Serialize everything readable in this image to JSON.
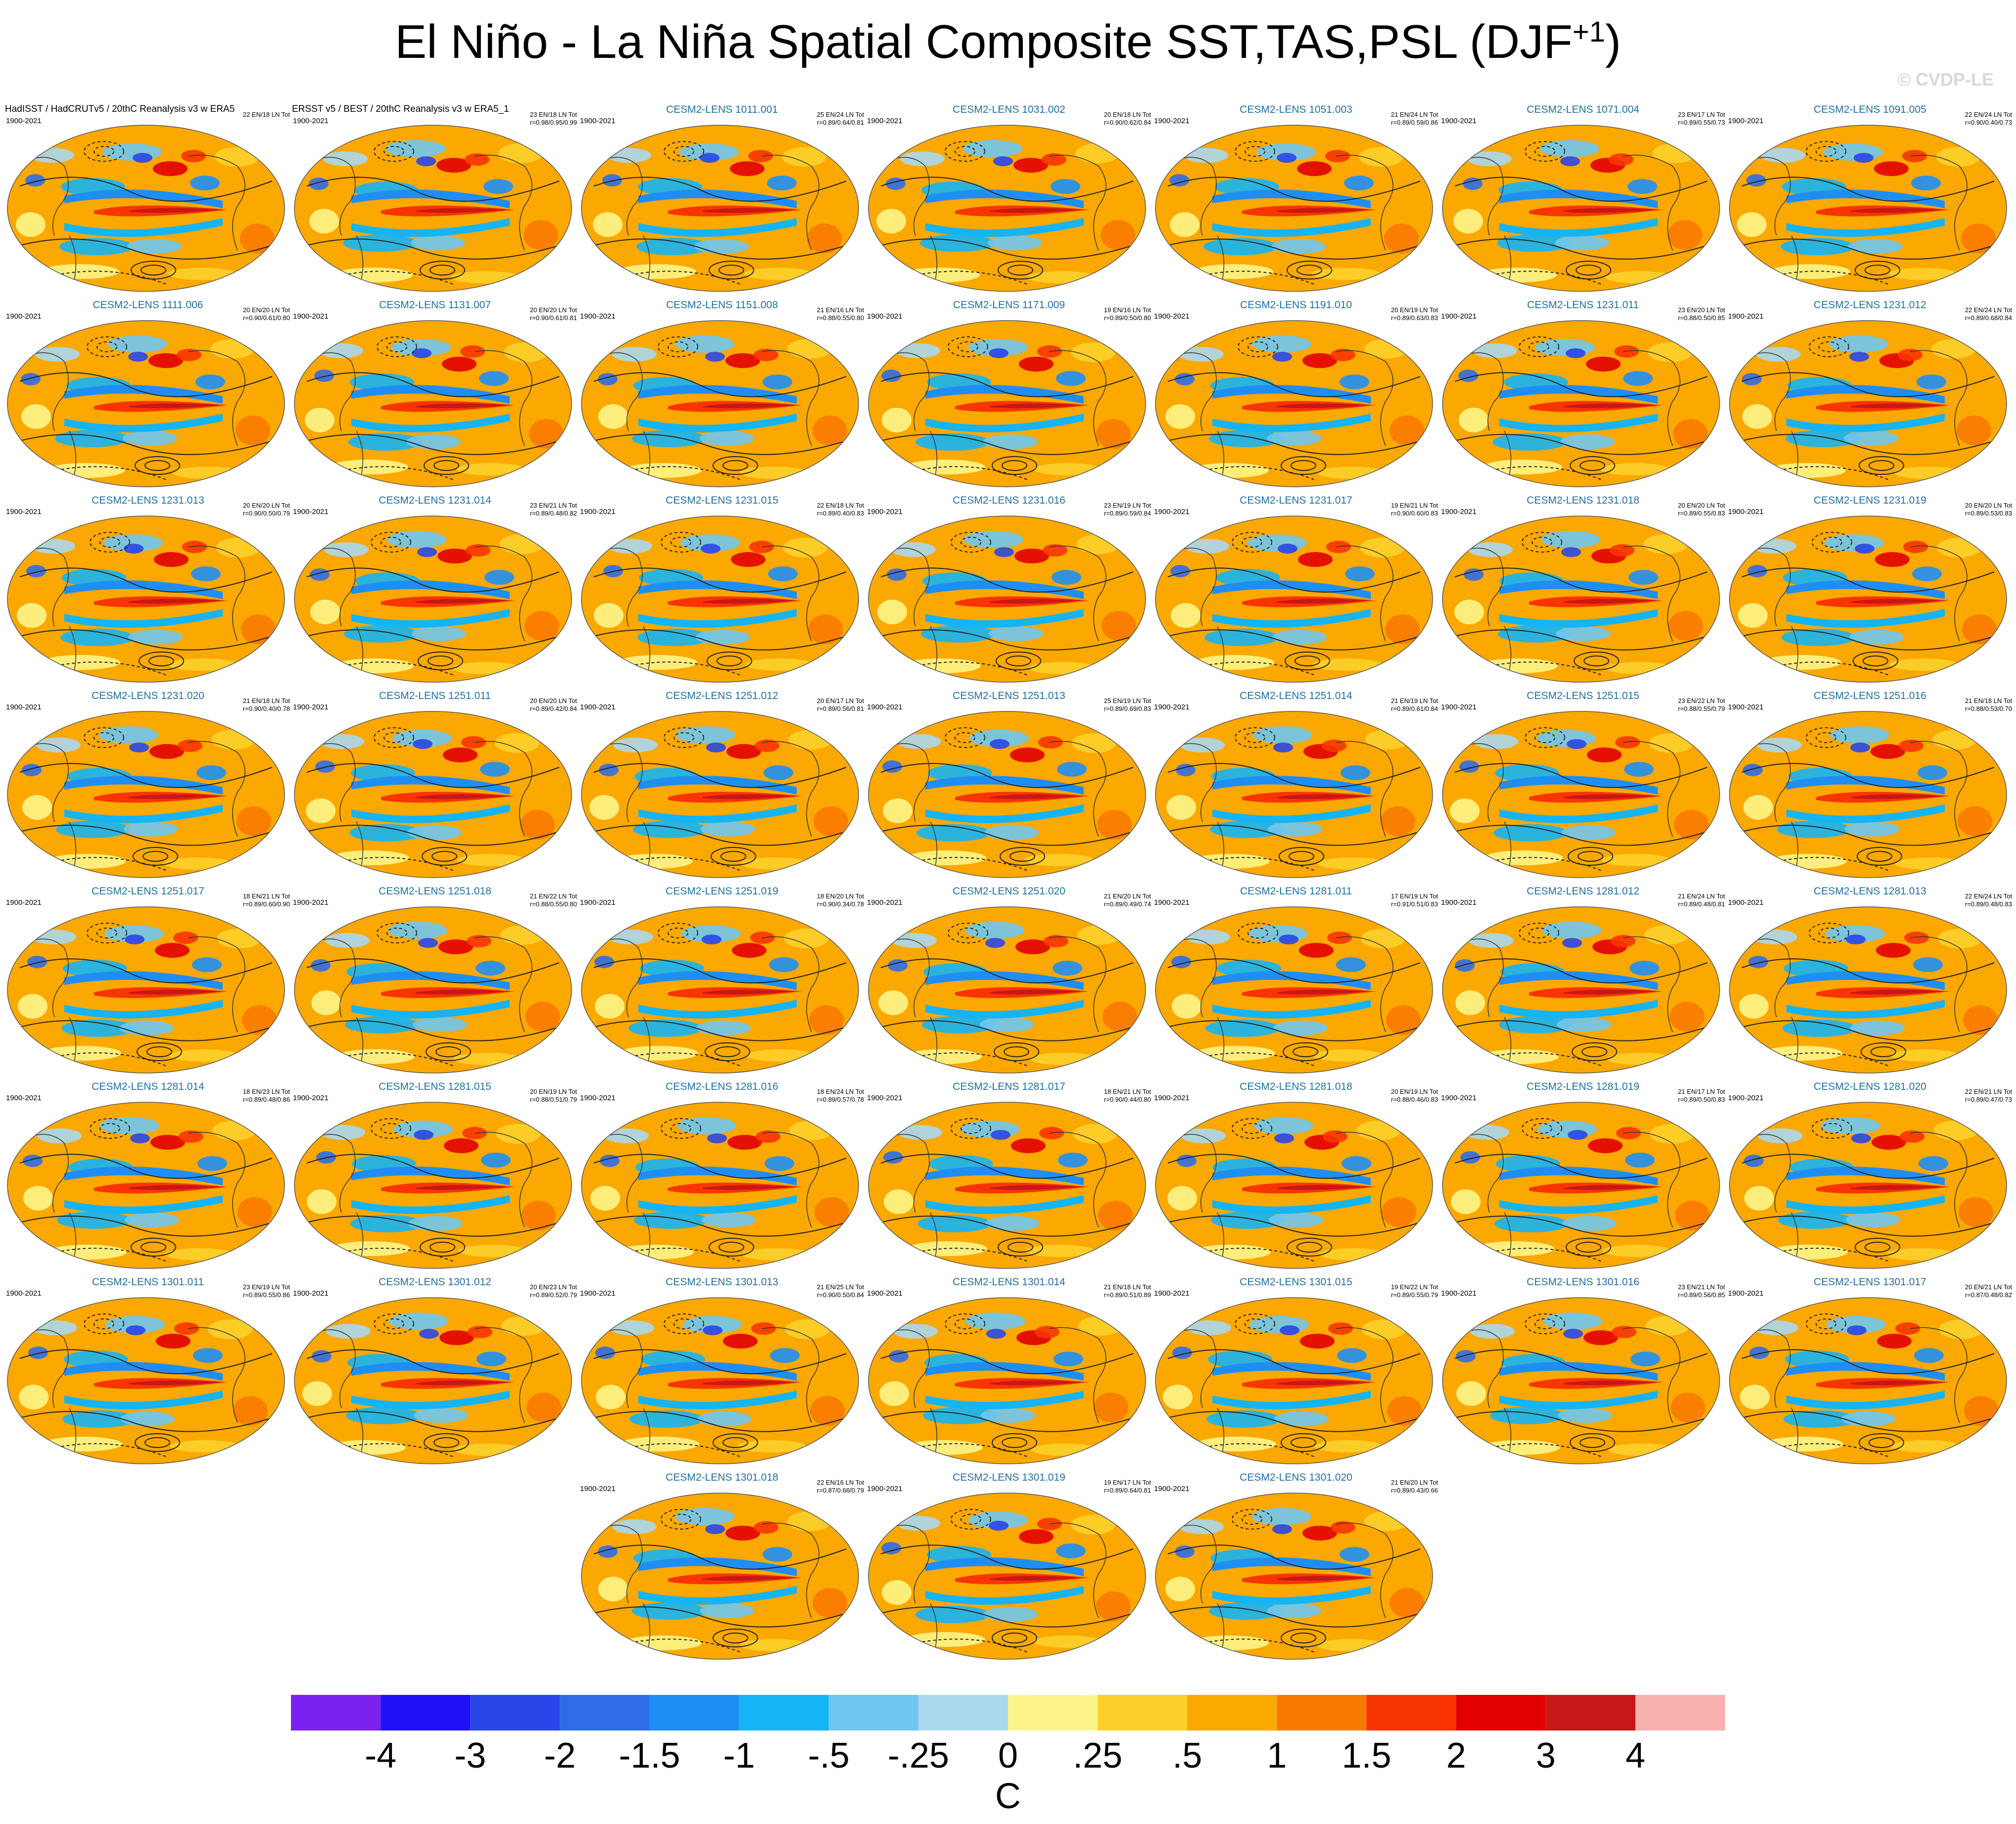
{
  "title": {
    "main": "El Niño - La Niña Spatial Composite SST,TAS,PSL (DJF",
    "sup": "+1",
    "close": ")"
  },
  "copyright": "© CVDP-LE",
  "chart_data": {
    "type": "heatmap",
    "years": "1900-2021",
    "panels": [
      {
        "name": "HadISST / HadCRUTv5 / 20thC Reanalysis v3 w ERA5",
        "stats": "22 EN/18 LN Tot",
        "obs": true
      },
      {
        "name": "ERSST v5 / BEST / 20thC Reanalysis v3 w ERA5_1",
        "stats": "23 EN/18 LN Tot\nr=0.98/0.95/0.99",
        "obs": true
      },
      {
        "name": "CESM2-LENS 1011.001",
        "stats": "25 EN/24 LN Tot\nr=0.89/0.64/0.81"
      },
      {
        "name": "CESM2-LENS 1031.002",
        "stats": "20 EN/18 LN Tot\nr=0.90/0.62/0.84"
      },
      {
        "name": "CESM2-LENS 1051.003",
        "stats": "21 EN/24 LN Tot\nr=0.89/0.59/0.86"
      },
      {
        "name": "CESM2-LENS 1071.004",
        "stats": "23 EN/17 LN Tot\nr=0.89/0.55/0.73"
      },
      {
        "name": "CESM2-LENS 1091.005",
        "stats": "22 EN/24 LN Tot\nr=0.90/0.40/0.73"
      },
      {
        "name": "CESM2-LENS 1111.006",
        "stats": "20 EN/20 LN Tot\nr=0.90/0.61/0.80"
      },
      {
        "name": "CESM2-LENS 1131.007",
        "stats": "20 EN/20 LN Tot\nr=0.90/0.61/0.81"
      },
      {
        "name": "CESM2-LENS 1151.008",
        "stats": "21 EN/16 LN Tot\nr=0.88/0.55/0.80"
      },
      {
        "name": "CESM2-LENS 1171.009",
        "stats": "19 EN/16 LN Tot\nr=0.89/0.50/0.80"
      },
      {
        "name": "CESM2-LENS 1191.010",
        "stats": "20 EN/19 LN Tot\nr=0.89/0.63/0.83"
      },
      {
        "name": "CESM2-LENS 1231.011",
        "stats": "23 EN/20 LN Tot\nr=0.88/0.50/0.85"
      },
      {
        "name": "CESM2-LENS 1231.012",
        "stats": "22 EN/24 LN Tot\nr=0.89/0.68/0.84"
      },
      {
        "name": "CESM2-LENS 1231.013",
        "stats": "20 EN/20 LN Tot\nr=0.90/0.50/0.79"
      },
      {
        "name": "CESM2-LENS 1231.014",
        "stats": "23 EN/21 LN Tot\nr=0.89/0.48/0.82"
      },
      {
        "name": "CESM2-LENS 1231.015",
        "stats": "22 EN/18 LN Tot\nr=0.89/0.40/0.83"
      },
      {
        "name": "CESM2-LENS 1231.016",
        "stats": "23 EN/19 LN Tot\nr=0.89/0.59/0.84"
      },
      {
        "name": "CESM2-LENS 1231.017",
        "stats": "19 EN/21 LN Tot\nr=0.90/0.60/0.83"
      },
      {
        "name": "CESM2-LENS 1231.018",
        "stats": "20 EN/20 LN Tot\nr=0.89/0.55/0.83"
      },
      {
        "name": "CESM2-LENS 1231.019",
        "stats": "20 EN/20 LN Tot\nr=0.89/0.53/0.83"
      },
      {
        "name": "CESM2-LENS 1231.020",
        "stats": "21 EN/18 LN Tot\nr=0.90/0.40/0.78"
      },
      {
        "name": "CESM2-LENS 1251.011",
        "stats": "20 EN/20 LN Tot\nr=0.89/0.42/0.84"
      },
      {
        "name": "CESM2-LENS 1251.012",
        "stats": "20 EN/17 LN Tot\nr=0.89/0.56/0.81"
      },
      {
        "name": "CESM2-LENS 1251.013",
        "stats": "25 EN/19 LN Tot\nr=0.89/0.69/0.83"
      },
      {
        "name": "CESM2-LENS 1251.014",
        "stats": "21 EN/19 LN Tot\nr=0.89/0.61/0.84"
      },
      {
        "name": "CESM2-LENS 1251.015",
        "stats": "23 EN/22 LN Tot\nr=0.88/0.55/0.79"
      },
      {
        "name": "CESM2-LENS 1251.016",
        "stats": "21 EN/18 LN Tot\nr=0.88/0.53/0.70"
      },
      {
        "name": "CESM2-LENS 1251.017",
        "stats": "18 EN/21 LN Tot\nr=0.89/0.60/0.90"
      },
      {
        "name": "CESM2-LENS 1251.018",
        "stats": "21 EN/22 LN Tot\nr=0.88/0.55/0.80"
      },
      {
        "name": "CESM2-LENS 1251.019",
        "stats": "18 EN/20 LN Tot\nr=0.90/0.34/0.78"
      },
      {
        "name": "CESM2-LENS 1251.020",
        "stats": "21 EN/20 LN Tot\nr=0.89/0.49/0.74"
      },
      {
        "name": "CESM2-LENS 1281.011",
        "stats": "17 EN/19 LN Tot\nr=0.91/0.51/0.83"
      },
      {
        "name": "CESM2-LENS 1281.012",
        "stats": "21 EN/24 LN Tot\nr=0.89/0.48/0.81"
      },
      {
        "name": "CESM2-LENS 1281.013",
        "stats": "22 EN/24 LN Tot\nr=0.89/0.48/0.83"
      },
      {
        "name": "CESM2-LENS 1281.014",
        "stats": "18 EN/23 LN Tot\nr=0.89/0.48/0.86"
      },
      {
        "name": "CESM2-LENS 1281.015",
        "stats": "20 EN/19 LN Tot\nr=0.88/0.51/0.79"
      },
      {
        "name": "CESM2-LENS 1281.016",
        "stats": "18 EN/24 LN Tot\nr=0.89/0.57/0.78"
      },
      {
        "name": "CESM2-LENS 1281.017",
        "stats": "18 EN/21 LN Tot\nr=0.90/0.44/0.80"
      },
      {
        "name": "CESM2-LENS 1281.018",
        "stats": "20 EN/19 LN Tot\nr=0.88/0.46/0.83"
      },
      {
        "name": "CESM2-LENS 1281.019",
        "stats": "21 EN/17 LN Tot\nr=0.89/0.50/0.83"
      },
      {
        "name": "CESM2-LENS 1281.020",
        "stats": "22 EN/21 LN Tot\nr=0.89/0.47/0.73"
      },
      {
        "name": "CESM2-LENS 1301.011",
        "stats": "23 EN/19 LN Tot\nr=0.89/0.55/0.86"
      },
      {
        "name": "CESM2-LENS 1301.012",
        "stats": "20 EN/23 LN Tot\nr=0.89/0.52/0.79"
      },
      {
        "name": "CESM2-LENS 1301.013",
        "stats": "21 EN/25 LN Tot\nr=0.90/0.50/0.84"
      },
      {
        "name": "CESM2-LENS 1301.014",
        "stats": "21 EN/18 LN Tot\nr=0.89/0.51/0.89"
      },
      {
        "name": "CESM2-LENS 1301.015",
        "stats": "19 EN/22 LN Tot\nr=0.89/0.55/0.79"
      },
      {
        "name": "CESM2-LENS 1301.016",
        "stats": "23 EN/21 LN Tot\nr=0.89/0.56/0.85"
      },
      {
        "name": "CESM2-LENS 1301.017",
        "stats": "20 EN/21 LN Tot\nr=0.87/0.48/0.82"
      },
      {
        "name": "CESM2-LENS 1301.018",
        "stats": "22 EN/16 LN Tot\nr=0.87/0.66/0.79"
      },
      {
        "name": "CESM2-LENS 1301.019",
        "stats": "19 EN/17 LN Tot\nr=0.89/0.64/0.81"
      },
      {
        "name": "CESM2-LENS 1301.020",
        "stats": "21 EN/20 LN Tot\nr=0.89/0.43/0.66"
      }
    ],
    "colorbar": {
      "labels": [
        "-4",
        "-3",
        "-2",
        "-1.5",
        "-1",
        "-.5",
        "-.25",
        "0",
        ".25",
        ".5",
        "1",
        "1.5",
        "2",
        "3",
        "4"
      ],
      "colors": [
        "#7b22ef",
        "#1f12f8",
        "#2a46e8",
        "#2f6de6",
        "#1e8ef4",
        "#15b4f4",
        "#6fc6ef",
        "#aad7ee",
        "#fdf58a",
        "#fccf2b",
        "#fba800",
        "#f97a00",
        "#f83400",
        "#e20000",
        "#c81717",
        "#fbb0b0"
      ],
      "units": "C"
    }
  }
}
